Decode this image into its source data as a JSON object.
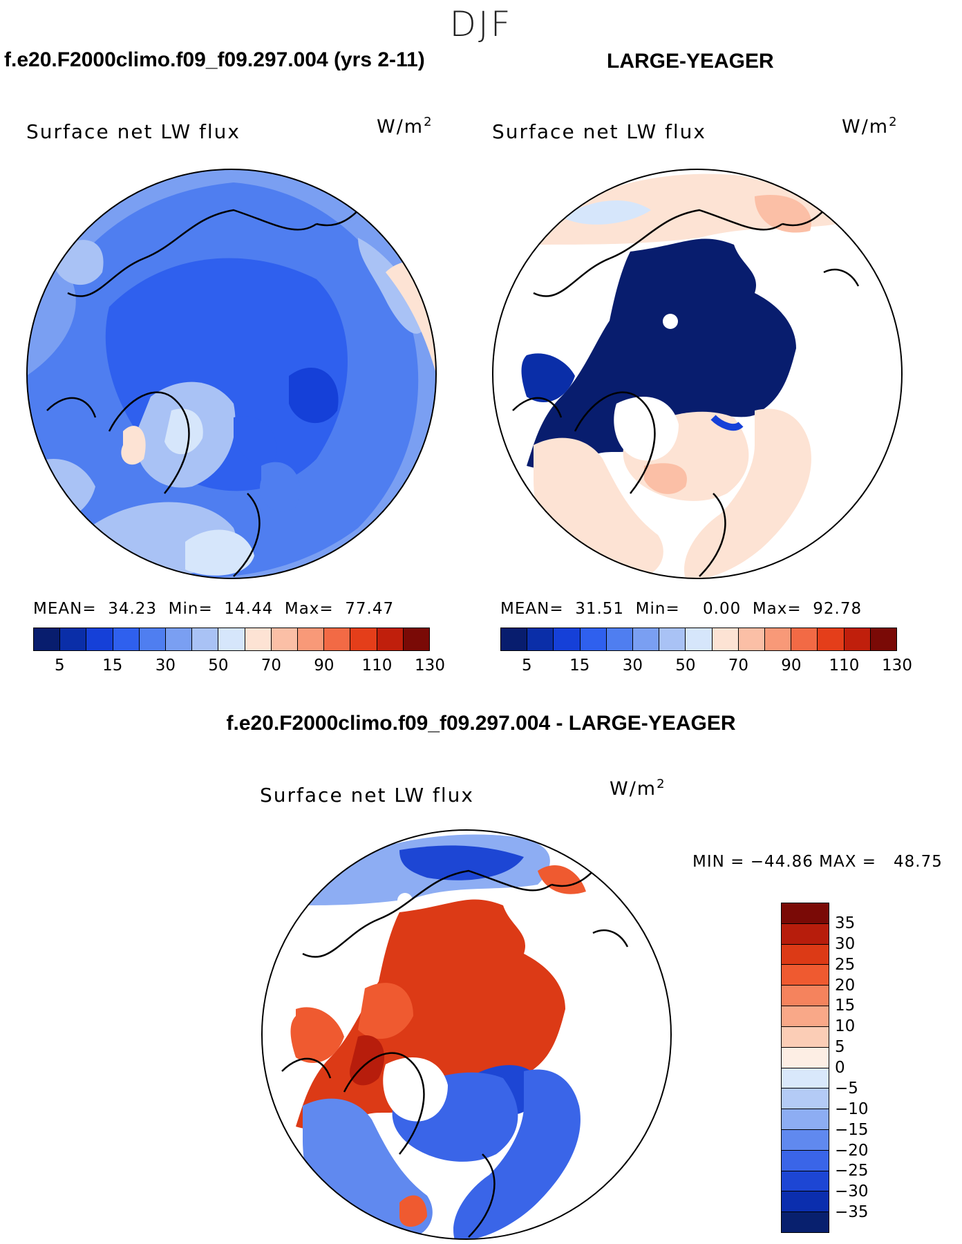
{
  "season": "DJF",
  "panels": [
    {
      "case_title": "f.e20.F2000climo.f09_f09.297.004 (yrs 2-11)",
      "variable": "Surface net LW flux",
      "units_base": "W/m",
      "units_exp": "2",
      "stats": "MEAN=  34.23  Min=  14.44  Max=  77.47",
      "colorbar_labels": [
        "5",
        "15",
        "30",
        "50",
        "70",
        "90",
        "110",
        "130"
      ]
    },
    {
      "case_title": "LARGE-YEAGER",
      "variable": "Surface net LW flux",
      "units_base": "W/m",
      "units_exp": "2",
      "stats": "MEAN=  31.51  Min=    0.00  Max=  92.78",
      "colorbar_labels": [
        "5",
        "15",
        "30",
        "50",
        "70",
        "90",
        "110",
        "130"
      ]
    }
  ],
  "diff": {
    "title": "f.e20.F2000climo.f09_f09.297.004 - LARGE-YEAGER",
    "variable": "Surface net LW flux",
    "units_base": "W/m",
    "units_exp": "2",
    "stats": "MIN = −44.86 MAX =   48.75",
    "colorbar_labels": [
      "35",
      "30",
      "25",
      "20",
      "15",
      "10",
      "5",
      "0",
      "−5",
      "−10",
      "−15",
      "−20",
      "−25",
      "−30",
      "−35"
    ]
  },
  "colors": {
    "abs_scale": [
      "#081d6e",
      "#0a2ea8",
      "#1540d8",
      "#2f60ee",
      "#4f7ef0",
      "#7a9ff2",
      "#a9c2f5",
      "#d6e6fb",
      "#fde3d4",
      "#fbbfa6",
      "#f89978",
      "#f26a45",
      "#e43e1a",
      "#c01f0c",
      "#7a0a06"
    ],
    "diff_scale": [
      "#7a0a06",
      "#b71d0c",
      "#dc3a16",
      "#ef5a30",
      "#f5835d",
      "#f9a888",
      "#fbcdb6",
      "#fdeee4",
      "#d9e8fb",
      "#b4cbf6",
      "#8dadf3",
      "#6089ef",
      "#3a65e8",
      "#1d46d4",
      "#0b2eae",
      "#08206e"
    ]
  },
  "chart_data": [
    {
      "type": "heatmap",
      "title": "f.e20.F2000climo.f09_f09.297.004 (yrs 2-11)",
      "variable": "Surface net LW flux",
      "units": "W/m2",
      "projection": "north-polar-stereographic",
      "stats": {
        "mean": 34.23,
        "min": 14.44,
        "max": 77.47
      },
      "contour_levels": [
        5,
        10,
        15,
        20,
        30,
        40,
        50,
        60,
        70,
        80,
        90,
        100,
        110,
        120,
        130
      ]
    },
    {
      "type": "heatmap",
      "title": "LARGE-YEAGER",
      "variable": "Surface net LW flux",
      "units": "W/m2",
      "projection": "north-polar-stereographic",
      "stats": {
        "mean": 31.51,
        "min": 0.0,
        "max": 92.78
      },
      "contour_levels": [
        5,
        10,
        15,
        20,
        30,
        40,
        50,
        60,
        70,
        80,
        90,
        100,
        110,
        120,
        130
      ]
    },
    {
      "type": "heatmap",
      "title": "f.e20.F2000climo.f09_f09.297.004 - LARGE-YEAGER",
      "variable": "Surface net LW flux",
      "units": "W/m2",
      "projection": "north-polar-stereographic",
      "stats": {
        "min": -44.86,
        "max": 48.75
      },
      "contour_levels": [
        -35,
        -30,
        -25,
        -20,
        -15,
        -10,
        -5,
        0,
        5,
        10,
        15,
        20,
        25,
        30,
        35
      ]
    }
  ]
}
